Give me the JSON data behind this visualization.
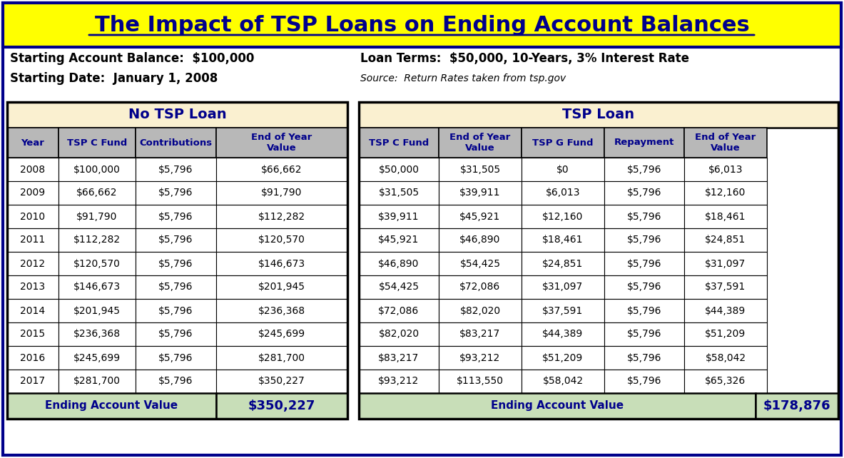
{
  "title": "The Impact of TSP Loans on Ending Account Balances",
  "subtitle_left1": "Starting Account Balance:  $100,000",
  "subtitle_left2": "Starting Date:  January 1, 2008",
  "subtitle_right1": "Loan Terms:  $50,000, 10-Years, 3% Interest Rate",
  "subtitle_right2": "Source:  Return Rates taken from tsp.gov",
  "no_loan_header": "No TSP Loan",
  "loan_header": "TSP Loan",
  "no_loan_cols": [
    "Year",
    "TSP C Fund",
    "Contributions",
    "End of Year\nValue"
  ],
  "loan_cols": [
    "TSP C Fund",
    "End of Year\nValue",
    "TSP G Fund",
    "Repayment",
    "End of Year\nValue"
  ],
  "no_loan_data": [
    [
      "2008",
      "$100,000",
      "$5,796",
      "$66,662"
    ],
    [
      "2009",
      "$66,662",
      "$5,796",
      "$91,790"
    ],
    [
      "2010",
      "$91,790",
      "$5,796",
      "$112,282"
    ],
    [
      "2011",
      "$112,282",
      "$5,796",
      "$120,570"
    ],
    [
      "2012",
      "$120,570",
      "$5,796",
      "$146,673"
    ],
    [
      "2013",
      "$146,673",
      "$5,796",
      "$201,945"
    ],
    [
      "2014",
      "$201,945",
      "$5,796",
      "$236,368"
    ],
    [
      "2015",
      "$236,368",
      "$5,796",
      "$245,699"
    ],
    [
      "2016",
      "$245,699",
      "$5,796",
      "$281,700"
    ],
    [
      "2017",
      "$281,700",
      "$5,796",
      "$350,227"
    ]
  ],
  "loan_data": [
    [
      "$50,000",
      "$31,505",
      "$0",
      "$5,796",
      "$6,013"
    ],
    [
      "$31,505",
      "$39,911",
      "$6,013",
      "$5,796",
      "$12,160"
    ],
    [
      "$39,911",
      "$45,921",
      "$12,160",
      "$5,796",
      "$18,461"
    ],
    [
      "$45,921",
      "$46,890",
      "$18,461",
      "$5,796",
      "$24,851"
    ],
    [
      "$46,890",
      "$54,425",
      "$24,851",
      "$5,796",
      "$31,097"
    ],
    [
      "$54,425",
      "$72,086",
      "$31,097",
      "$5,796",
      "$37,591"
    ],
    [
      "$72,086",
      "$82,020",
      "$37,591",
      "$5,796",
      "$44,389"
    ],
    [
      "$82,020",
      "$83,217",
      "$44,389",
      "$5,796",
      "$51,209"
    ],
    [
      "$83,217",
      "$93,212",
      "$51,209",
      "$5,796",
      "$58,042"
    ],
    [
      "$93,212",
      "$113,550",
      "$58,042",
      "$5,796",
      "$65,326"
    ]
  ],
  "no_loan_ending": "$350,227",
  "loan_ending": "$178,876",
  "bg_color": "#FFFFFF",
  "outer_border_color": "#00008B",
  "title_bg": "#FFFF00",
  "title_color": "#00008B",
  "header_bg": "#FAF0D0",
  "col_header_bg": "#B8B8B8",
  "data_bg_odd": "#FFFFFF",
  "data_bg_even": "#FFFFFF",
  "ending_bg": "#C8DEB8",
  "ending_text_color": "#00008B",
  "data_text_color": "#000000",
  "col_header_text_color": "#00008B",
  "section_header_text_color": "#00008B"
}
